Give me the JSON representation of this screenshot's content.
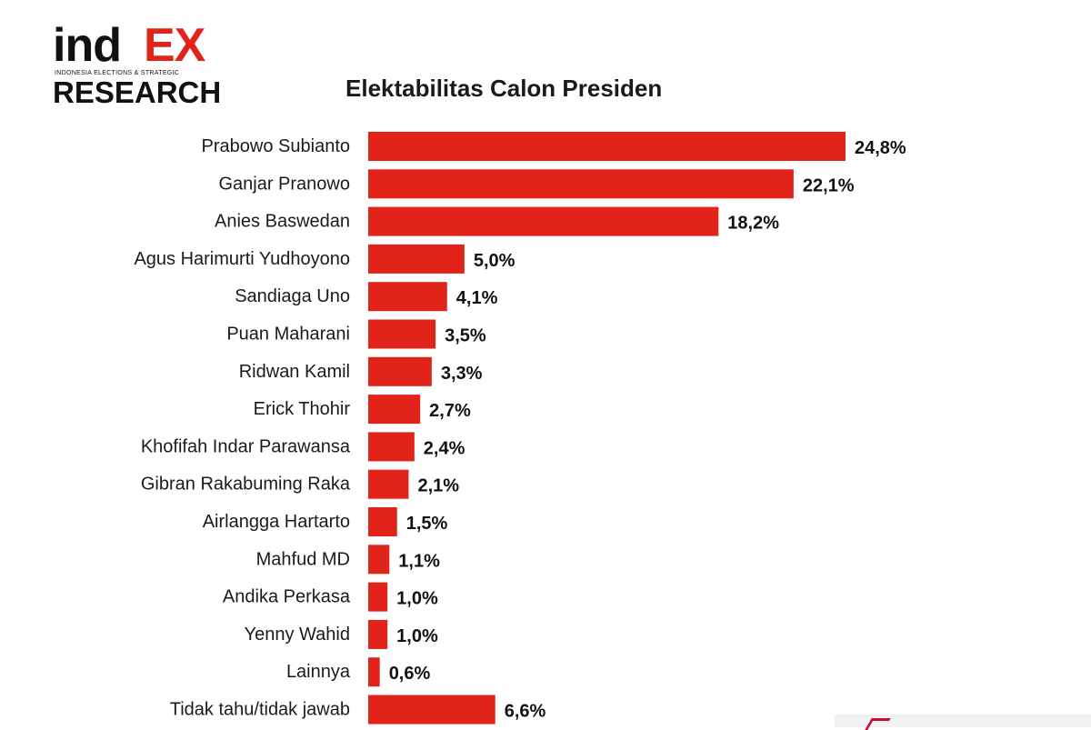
{
  "logo": {
    "brand_part1": "ind",
    "brand_part2": "EX",
    "tagline": "INDONESIA ELECTIONS & STRATEGIC",
    "brand_line2": "RESEARCH"
  },
  "chart_data": {
    "type": "bar",
    "orientation": "horizontal",
    "title": "Elektabilitas Calon Presiden",
    "xlabel": "",
    "ylabel": "",
    "bar_color": "#e2231a",
    "categories": [
      "Prabowo Subianto",
      "Ganjar Pranowo",
      "Anies Baswedan",
      "Agus Harimurti Yudhoyono",
      "Sandiaga Uno",
      "Puan Maharani",
      "Ridwan Kamil",
      "Erick Thohir",
      "Khofifah Indar Parawansa",
      "Gibran Rakabuming Raka",
      "Airlangga Hartarto",
      "Mahfud MD",
      "Andika Perkasa",
      "Yenny Wahid",
      "Lainnya",
      "Tidak tahu/tidak jawab"
    ],
    "values": [
      24.8,
      22.1,
      18.2,
      5.0,
      4.1,
      3.5,
      3.3,
      2.7,
      2.4,
      2.1,
      1.5,
      1.1,
      1.0,
      1.0,
      0.6,
      6.6
    ],
    "value_labels": [
      "24,8%",
      "22,1%",
      "18,2%",
      "5,0%",
      "4,1%",
      "3,5%",
      "3,3%",
      "2,7%",
      "2,4%",
      "2,1%",
      "1,5%",
      "1,1%",
      "1,0%",
      "1,0%",
      "0,6%",
      "6,6%"
    ],
    "xlim": [
      0,
      24.8
    ],
    "grid": false,
    "legend": "none"
  }
}
